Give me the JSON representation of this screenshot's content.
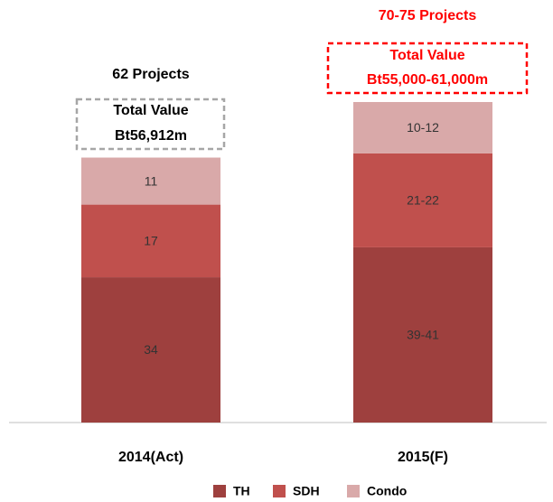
{
  "chart_data": {
    "type": "stacked-bar",
    "categories": [
      "2014(Act)",
      "2015(F)"
    ],
    "series": [
      {
        "name": "TH",
        "color": "#9e403e",
        "values": [
          34,
          41
        ],
        "value_labels": [
          "34",
          "39-41"
        ]
      },
      {
        "name": "SDH",
        "color": "#c0504d",
        "values": [
          17,
          22
        ],
        "value_labels": [
          "17",
          "21-22"
        ]
      },
      {
        "name": "Condo",
        "color": "#d9a9a9",
        "values": [
          11,
          12
        ],
        "value_labels": [
          "11",
          "10-12"
        ]
      }
    ],
    "ylim": [
      0,
      75
    ],
    "annotations": [
      {
        "projects": "62 Projects",
        "caption": "Total Value",
        "total": "Bt56,912m",
        "color": "#000000",
        "box_color": "#a6a6a6"
      },
      {
        "projects": "70-75 Projects",
        "caption": "Total Value",
        "total": "Bt55,000-61,000m",
        "color": "#ff0000",
        "box_color": "#ff0000"
      }
    ]
  }
}
